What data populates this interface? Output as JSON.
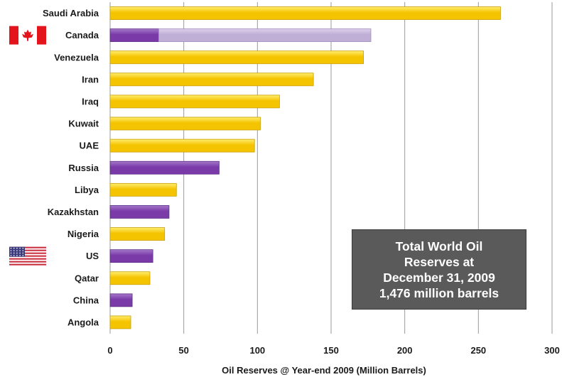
{
  "chart_data": {
    "type": "bar",
    "orientation": "horizontal",
    "categories": [
      "Saudi Arabia",
      "Canada",
      "Venezuela",
      "Iran",
      "Iraq",
      "Kuwait",
      "UAE",
      "Russia",
      "Libya",
      "Kazakhstan",
      "Nigeria",
      "US",
      "Qatar",
      "China",
      "Angola"
    ],
    "values": [
      265,
      177,
      172,
      138,
      115,
      102,
      98,
      74,
      45,
      40,
      37,
      29,
      27,
      15,
      14
    ],
    "segments": {
      "Canada": [
        {
          "value": 33,
          "style": "primary"
        },
        {
          "value": 144,
          "style": "light"
        }
      ]
    },
    "bar_colors": [
      "gold",
      "segments",
      "gold",
      "gold",
      "gold",
      "gold",
      "gold",
      "purple",
      "gold",
      "purple",
      "gold",
      "purple",
      "gold",
      "purple",
      "gold"
    ],
    "colors": {
      "gold": "#f5c400",
      "gold_light": "#ffee70",
      "purple": "#7a3aa8",
      "purple_light": "#a478c9",
      "canada_light": "#bfaed6",
      "canada_light_top": "#dcd0ea",
      "grid": "#9a9a9a",
      "note_bg": "#5a5a5a"
    },
    "xlabel": "Oil Reserves @ Year-end 2009 (Million Barrels)",
    "ylabel": "",
    "xlim": [
      0,
      300
    ],
    "xticks": [
      "0",
      "50",
      "100",
      "150",
      "200",
      "250",
      "300"
    ],
    "grid": true,
    "flags": {
      "Canada": "canada-flag",
      "US": "us-flag"
    }
  },
  "note": {
    "lines": [
      "Total World Oil",
      "Reserves at",
      "December 31, 2009",
      "1,476 million barrels"
    ]
  }
}
